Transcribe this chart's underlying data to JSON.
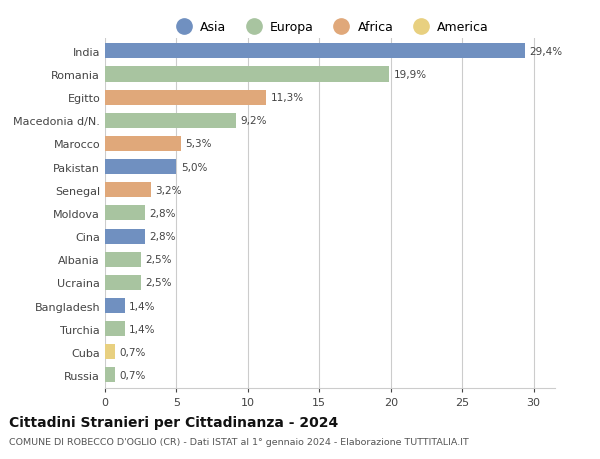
{
  "countries": [
    "Russia",
    "Cuba",
    "Turchia",
    "Bangladesh",
    "Ucraina",
    "Albania",
    "Cina",
    "Moldova",
    "Senegal",
    "Pakistan",
    "Marocco",
    "Macedonia d/N.",
    "Egitto",
    "Romania",
    "India"
  ],
  "values": [
    0.7,
    0.7,
    1.4,
    1.4,
    2.5,
    2.5,
    2.8,
    2.8,
    3.2,
    5.0,
    5.3,
    9.2,
    11.3,
    19.9,
    29.4
  ],
  "labels": [
    "0,7%",
    "0,7%",
    "1,4%",
    "1,4%",
    "2,5%",
    "2,5%",
    "2,8%",
    "2,8%",
    "3,2%",
    "5,0%",
    "5,3%",
    "9,2%",
    "11,3%",
    "19,9%",
    "29,4%"
  ],
  "colors": [
    "#a8c4a0",
    "#e8d080",
    "#a8c4a0",
    "#7090c0",
    "#a8c4a0",
    "#a8c4a0",
    "#7090c0",
    "#a8c4a0",
    "#e0a87a",
    "#7090c0",
    "#e0a87a",
    "#a8c4a0",
    "#e0a87a",
    "#a8c4a0",
    "#7090c0"
  ],
  "legend_labels": [
    "Asia",
    "Europa",
    "Africa",
    "America"
  ],
  "legend_colors": [
    "#7090c0",
    "#a8c4a0",
    "#e0a87a",
    "#e8d080"
  ],
  "title": "Cittadini Stranieri per Cittadinanza - 2024",
  "subtitle": "COMUNE DI ROBECCO D'OGLIO (CR) - Dati ISTAT al 1° gennaio 2024 - Elaborazione TUTTITALIA.IT",
  "xlim": [
    0,
    31.5
  ],
  "xticks": [
    0,
    5,
    10,
    15,
    20,
    25,
    30
  ],
  "bg_color": "#ffffff",
  "grid_color": "#cccccc",
  "bar_height": 0.65
}
